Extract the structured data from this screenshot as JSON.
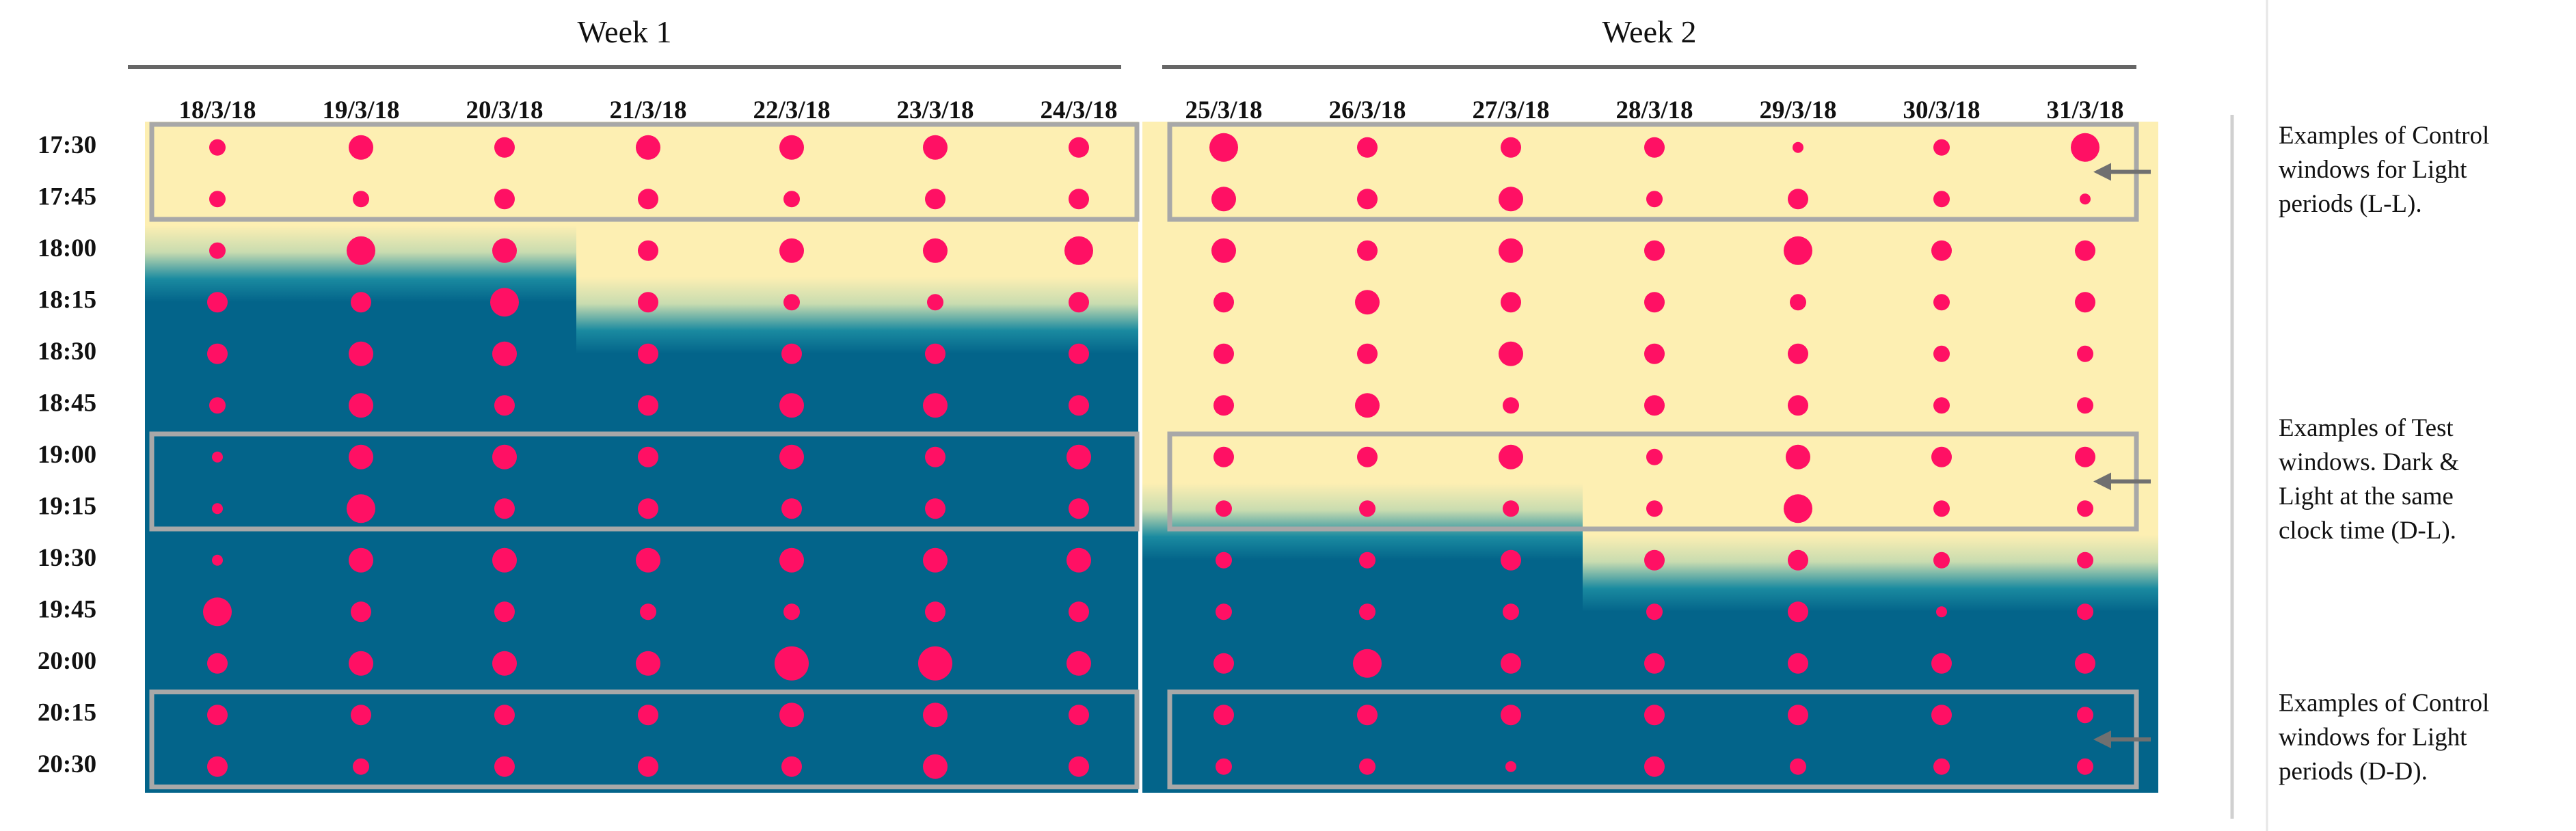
{
  "chart_data": {
    "type": "scatter",
    "subtype": "bubble-grid",
    "weeks": [
      {
        "label": "Week 1",
        "dates": [
          "18/3/18",
          "19/3/18",
          "20/3/18",
          "21/3/18",
          "22/3/18",
          "23/3/18",
          "24/3/18"
        ]
      },
      {
        "label": "Week 2",
        "dates": [
          "25/3/18",
          "26/3/18",
          "27/3/18",
          "28/3/18",
          "29/3/18",
          "30/3/18",
          "31/3/18"
        ]
      }
    ],
    "times": [
      "17:30",
      "17:45",
      "18:00",
      "18:15",
      "18:30",
      "18:45",
      "19:00",
      "19:15",
      "19:30",
      "19:45",
      "20:00",
      "20:15",
      "20:30"
    ],
    "sizes": [
      [
        2,
        4,
        3,
        4,
        4,
        4,
        3,
        5,
        3,
        3,
        3,
        1,
        2,
        5
      ],
      [
        2,
        2,
        3,
        3,
        2,
        3,
        3,
        4,
        3,
        4,
        2,
        3,
        2,
        1
      ],
      [
        2,
        5,
        4,
        3,
        4,
        4,
        5,
        4,
        3,
        4,
        3,
        5,
        3,
        3
      ],
      [
        3,
        3,
        5,
        3,
        2,
        2,
        3,
        3,
        4,
        3,
        3,
        2,
        2,
        3
      ],
      [
        3,
        4,
        4,
        3,
        3,
        3,
        3,
        3,
        3,
        4,
        3,
        3,
        2,
        2
      ],
      [
        2,
        4,
        3,
        3,
        4,
        4,
        3,
        3,
        4,
        2,
        3,
        3,
        2,
        2
      ],
      [
        1,
        4,
        4,
        3,
        4,
        3,
        4,
        3,
        3,
        4,
        2,
        4,
        3,
        3
      ],
      [
        1,
        5,
        3,
        3,
        3,
        3,
        3,
        2,
        2,
        2,
        2,
        5,
        2,
        2
      ],
      [
        1,
        4,
        4,
        4,
        4,
        4,
        4,
        2,
        2,
        3,
        3,
        3,
        2,
        2
      ],
      [
        5,
        3,
        3,
        2,
        2,
        3,
        3,
        2,
        2,
        2,
        2,
        3,
        1,
        2
      ],
      [
        3,
        4,
        4,
        4,
        6,
        6,
        4,
        3,
        5,
        3,
        3,
        3,
        3,
        3
      ],
      [
        3,
        3,
        3,
        3,
        4,
        4,
        3,
        3,
        3,
        3,
        3,
        3,
        3,
        2
      ],
      [
        3,
        2,
        3,
        3,
        3,
        4,
        3,
        2,
        2,
        1,
        3,
        2,
        2,
        2
      ]
    ],
    "darkness_start": {
      "week1": [
        "18:15",
        "18:15",
        "18:15",
        "18:30",
        "18:30",
        "18:30",
        "18:30"
      ],
      "week2": [
        "19:30",
        "19:30",
        "19:30",
        "19:45",
        "19:45",
        "19:45",
        "19:45"
      ]
    },
    "background": {
      "light": "#fdefb2",
      "dark": "#03648a"
    },
    "dot_color": "#ff1064",
    "window_border_color": "#a8a8a8",
    "windows": [
      {
        "group": "L-L",
        "week": 1,
        "times": [
          "17:30",
          "17:45"
        ]
      },
      {
        "group": "L-L",
        "week": 2,
        "times": [
          "17:30",
          "17:45"
        ]
      },
      {
        "group": "D-L",
        "week": 1,
        "times": [
          "19:00",
          "19:15"
        ]
      },
      {
        "group": "D-L",
        "week": 2,
        "times": [
          "19:00",
          "19:15"
        ]
      },
      {
        "group": "D-D",
        "week": 1,
        "times": [
          "20:15",
          "20:30"
        ]
      },
      {
        "group": "D-D",
        "week": 2,
        "times": [
          "20:15",
          "20:30"
        ]
      }
    ],
    "annotations": [
      {
        "group": "L-L",
        "lines": [
          "Examples of Control",
          "windows for Light",
          "periods (L-L)."
        ]
      },
      {
        "group": "D-L",
        "lines": [
          "Examples of Test",
          "windows. Dark &",
          "Light at the same",
          "clock time (D-L)."
        ]
      },
      {
        "group": "D-D",
        "lines": [
          "Examples of Control",
          "windows for Light",
          "periods (D-D)."
        ]
      }
    ]
  }
}
